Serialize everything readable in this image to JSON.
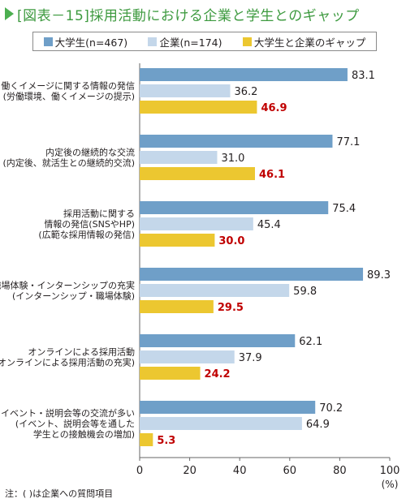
{
  "title": "[図表－15]採用活動における企業と学生とのギャップ",
  "note": "注：( )は企業への質問項目",
  "colors": {
    "students": "#6f9fc8",
    "companies": "#c4d7ea",
    "gap": "#ecc730",
    "gap_label": "#c00000",
    "axis": "#666666"
  },
  "chart_data": {
    "type": "bar",
    "orientation": "horizontal",
    "categories": [
      [
        "労働環境・働くイメージに関する情報の発信",
        "(労働環境、働くイメージの提示)"
      ],
      [
        "内定後の継続的な交流",
        "(内定後、就活生との継続的交流)"
      ],
      [
        "採用活動に関する",
        "情報の発信(SNSやHP)",
        "(広範な採用情報の発信)"
      ],
      [
        "職場体験・インターンシップの充実",
        "(インターンシップ・職場体験)"
      ],
      [
        "オンラインによる採用活動",
        "(オンラインによる採用活動の充実)"
      ],
      [
        "イベント・説明会等の交流が多い",
        "(イベント、説明会等を通した",
        "学生との接触機会の増加)"
      ]
    ],
    "series": [
      {
        "name": "大学生(n=467)",
        "values": [
          83.1,
          77.1,
          75.4,
          89.3,
          62.1,
          70.2
        ]
      },
      {
        "name": "企業(n=174)",
        "values": [
          36.2,
          31.0,
          45.4,
          59.8,
          37.9,
          64.9
        ]
      },
      {
        "name": "大学生と企業のギャップ",
        "values": [
          46.9,
          46.1,
          30.0,
          29.5,
          24.2,
          5.3
        ]
      }
    ],
    "xlim": [
      0,
      100
    ],
    "xticks": [
      "0",
      "20",
      "40",
      "60",
      "80",
      "100"
    ],
    "xunit": "(%)",
    "grid": false,
    "legend_position": "top"
  }
}
